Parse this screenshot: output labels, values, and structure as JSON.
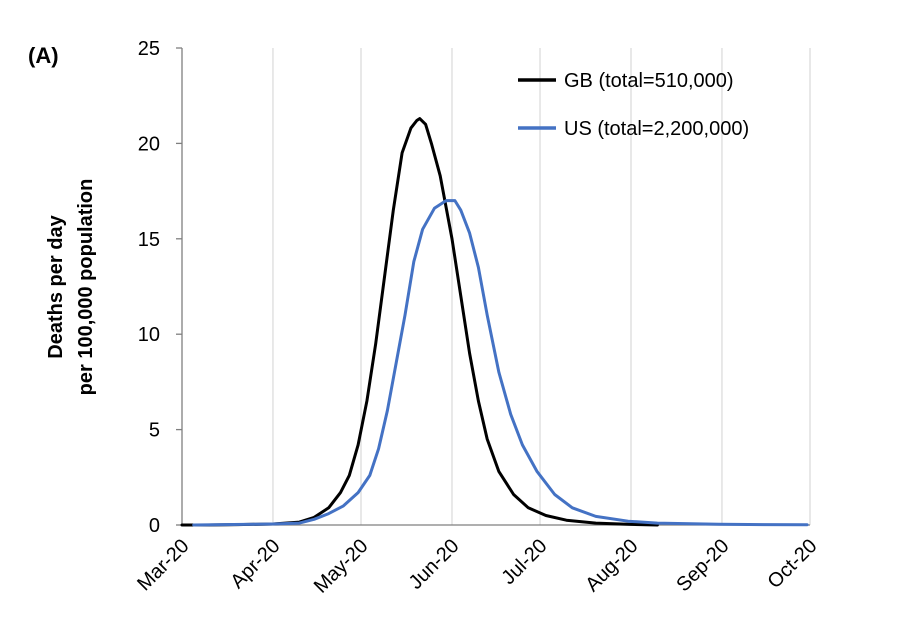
{
  "panel_label": "(A)",
  "chart_data": {
    "type": "line",
    "ylabel_lines": [
      "Deaths per day",
      "per 100,000 population"
    ],
    "xlabel": "",
    "ylim": [
      0,
      25
    ],
    "yticks": [
      0,
      5,
      10,
      15,
      20,
      25
    ],
    "xlim": [
      "2020-03-01",
      "2020-10-01"
    ],
    "xticks": [
      "Mar-20",
      "Apr-20",
      "May-20",
      "Jun-20",
      "Jul-20",
      "Aug-20",
      "Sep-20",
      "Oct-20"
    ],
    "grid": {
      "vertical": true,
      "horizontal": false
    },
    "legend_position": "top-right",
    "series": [
      {
        "name": "GB (total=510,000)",
        "color": "#000000",
        "points": [
          [
            "2020-03-01",
            0.0
          ],
          [
            "2020-03-10",
            0.0
          ],
          [
            "2020-03-20",
            0.02
          ],
          [
            "2020-04-01",
            0.05
          ],
          [
            "2020-04-10",
            0.15
          ],
          [
            "2020-04-15",
            0.4
          ],
          [
            "2020-04-20",
            0.9
          ],
          [
            "2020-04-24",
            1.7
          ],
          [
            "2020-04-27",
            2.6
          ],
          [
            "2020-04-30",
            4.2
          ],
          [
            "2020-05-03",
            6.5
          ],
          [
            "2020-05-06",
            9.5
          ],
          [
            "2020-05-09",
            13.0
          ],
          [
            "2020-05-12",
            16.5
          ],
          [
            "2020-05-15",
            19.5
          ],
          [
            "2020-05-18",
            20.8
          ],
          [
            "2020-05-20",
            21.2
          ],
          [
            "2020-05-21",
            21.3
          ],
          [
            "2020-05-23",
            21.0
          ],
          [
            "2020-05-25",
            20.0
          ],
          [
            "2020-05-28",
            18.3
          ],
          [
            "2020-06-01",
            15.0
          ],
          [
            "2020-06-04",
            12.0
          ],
          [
            "2020-06-07",
            9.0
          ],
          [
            "2020-06-10",
            6.5
          ],
          [
            "2020-06-13",
            4.5
          ],
          [
            "2020-06-17",
            2.8
          ],
          [
            "2020-06-22",
            1.6
          ],
          [
            "2020-06-27",
            0.9
          ],
          [
            "2020-07-03",
            0.5
          ],
          [
            "2020-07-10",
            0.25
          ],
          [
            "2020-07-20",
            0.1
          ],
          [
            "2020-08-01",
            0.03
          ],
          [
            "2020-08-10",
            0.0
          ]
        ]
      },
      {
        "name": "US (total=2,200,000)",
        "color": "#4472C4",
        "points": [
          [
            "2020-03-05",
            0.0
          ],
          [
            "2020-03-15",
            0.02
          ],
          [
            "2020-04-01",
            0.05
          ],
          [
            "2020-04-10",
            0.1
          ],
          [
            "2020-04-15",
            0.3
          ],
          [
            "2020-04-20",
            0.6
          ],
          [
            "2020-04-25",
            1.0
          ],
          [
            "2020-04-30",
            1.7
          ],
          [
            "2020-05-04",
            2.6
          ],
          [
            "2020-05-07",
            4.0
          ],
          [
            "2020-05-10",
            6.0
          ],
          [
            "2020-05-13",
            8.5
          ],
          [
            "2020-05-16",
            11.0
          ],
          [
            "2020-05-19",
            13.8
          ],
          [
            "2020-05-22",
            15.5
          ],
          [
            "2020-05-26",
            16.6
          ],
          [
            "2020-05-30",
            17.0
          ],
          [
            "2020-06-02",
            17.0
          ],
          [
            "2020-06-04",
            16.5
          ],
          [
            "2020-06-07",
            15.3
          ],
          [
            "2020-06-10",
            13.5
          ],
          [
            "2020-06-13",
            11.0
          ],
          [
            "2020-06-17",
            8.0
          ],
          [
            "2020-06-21",
            5.8
          ],
          [
            "2020-06-25",
            4.2
          ],
          [
            "2020-06-30",
            2.8
          ],
          [
            "2020-07-06",
            1.6
          ],
          [
            "2020-07-12",
            0.9
          ],
          [
            "2020-07-20",
            0.45
          ],
          [
            "2020-07-31",
            0.2
          ],
          [
            "2020-08-10",
            0.1
          ],
          [
            "2020-08-31",
            0.04
          ],
          [
            "2020-09-15",
            0.02
          ],
          [
            "2020-09-30",
            0.01
          ]
        ]
      }
    ]
  }
}
